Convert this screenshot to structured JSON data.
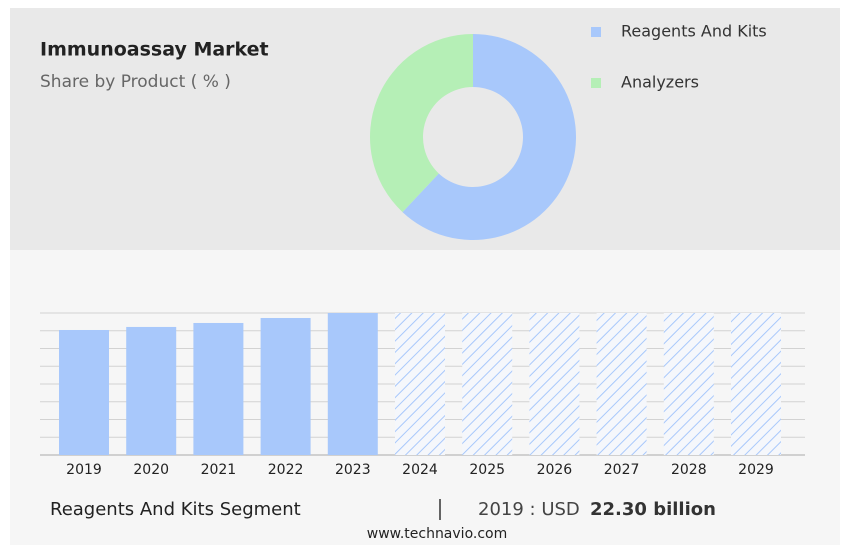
{
  "chart_data": [
    {
      "type": "pie",
      "title": "Immunoassay Market",
      "subtitle": "Share by Product ( % )",
      "categories": [
        "Reagents And Kits",
        "Analyzers"
      ],
      "values": [
        62,
        38
      ],
      "colors": [
        "#a8c8fb",
        "#b5efb6"
      ],
      "donut": true
    },
    {
      "type": "bar",
      "categories": [
        "2019",
        "2020",
        "2021",
        "2022",
        "2023",
        "2024",
        "2025",
        "2026",
        "2027",
        "2028",
        "2029"
      ],
      "values": [
        22.3,
        22.84,
        23.55,
        24.44,
        25.33,
        null,
        null,
        null,
        null,
        null,
        null
      ],
      "color": "#a8c8fb",
      "ylim": [
        0,
        25.33
      ]
    }
  ],
  "footer": {
    "segment": "Reagents And Kits Segment",
    "year_unit": "2019 : USD",
    "value": "22.30 billion"
  },
  "source": "www.technavio.com"
}
